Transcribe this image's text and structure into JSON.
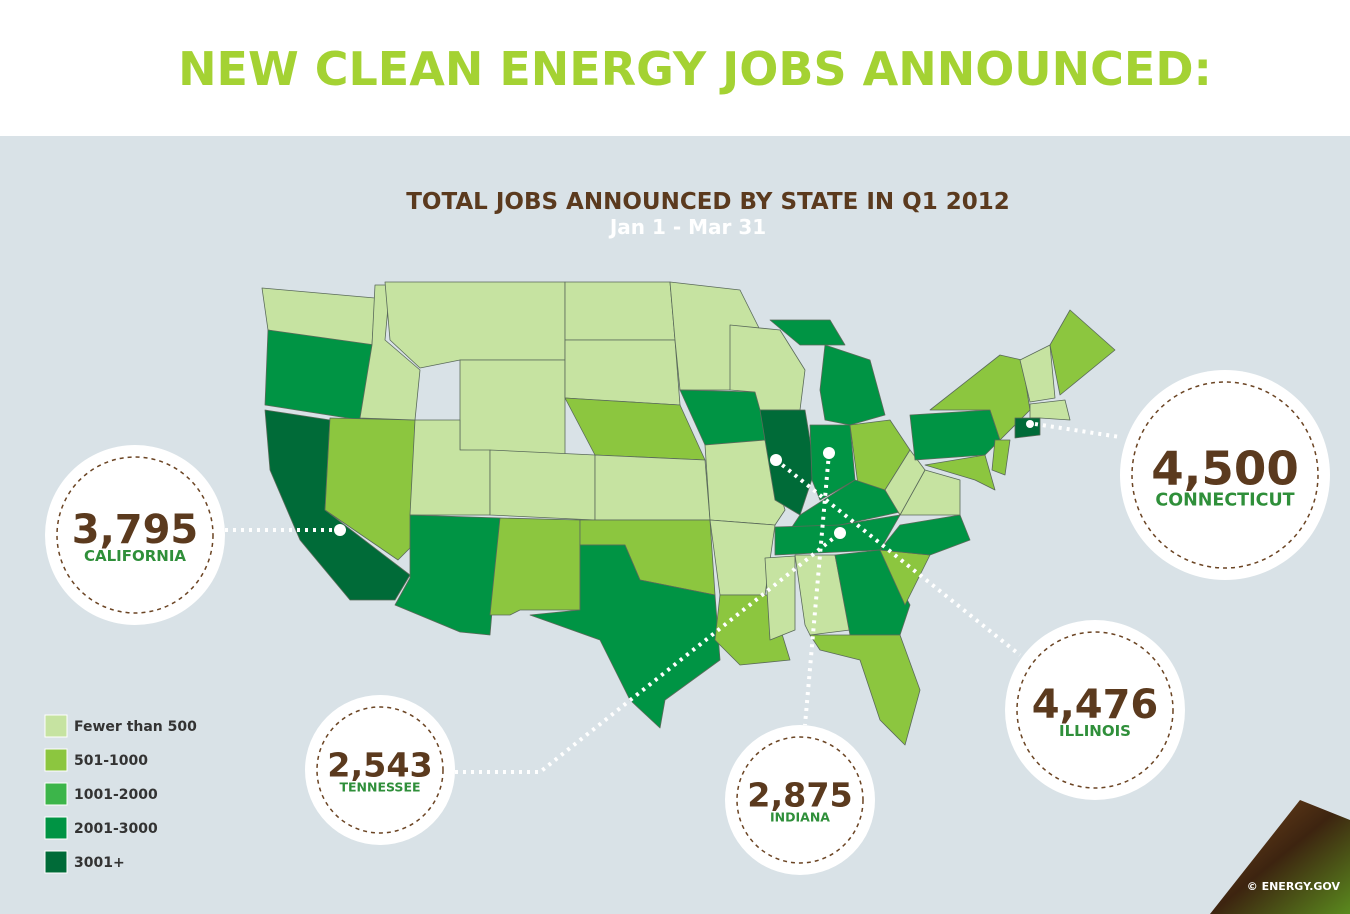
{
  "header": {
    "title": "NEW CLEAN ENERGY JOBS ANNOUNCED:"
  },
  "map": {
    "title": "TOTAL JOBS ANNOUNCED BY STATE IN Q1 2012",
    "subtitle": "Jan 1 - Mar 31",
    "legend": [
      {
        "label": "Fewer than 500",
        "color": "#c6e3a1"
      },
      {
        "label": "501-1000",
        "color": "#8cc63f"
      },
      {
        "label": "1001-2000",
        "color": "#3cb54a"
      },
      {
        "label": "2001-3000",
        "color": "#009444"
      },
      {
        "label": "3001+",
        "color": "#006b38"
      }
    ],
    "callouts": [
      {
        "value": "3,795",
        "state": "CALIFORNIA"
      },
      {
        "value": "4,500",
        "state": "CONNECTICUT"
      },
      {
        "value": "4,476",
        "state": "ILLINOIS"
      },
      {
        "value": "2,543",
        "state": "TENNESSEE"
      },
      {
        "value": "2,875",
        "state": "INDIANA"
      }
    ]
  },
  "footer": {
    "credit": "© ENERGY.GOV"
  }
}
